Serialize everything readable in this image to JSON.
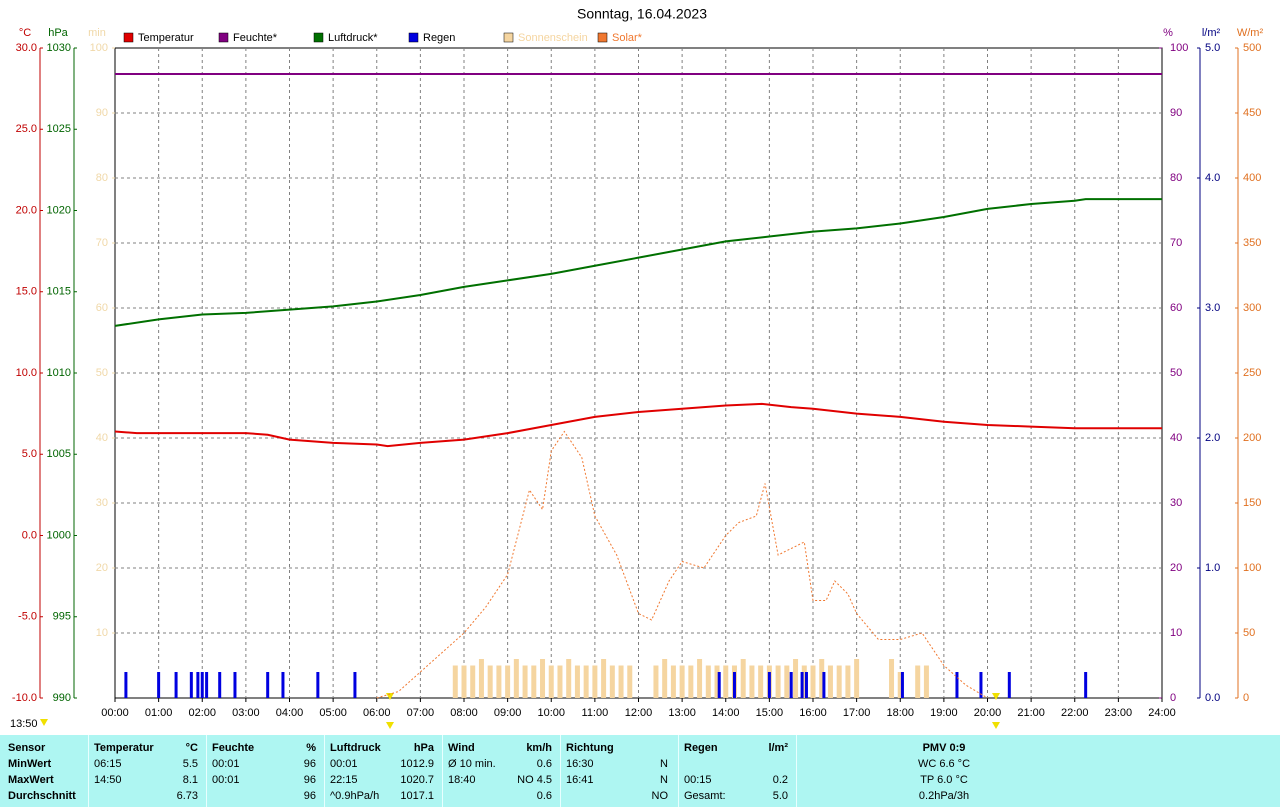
{
  "chart_data": {
    "type": "line",
    "title": "Sonntag, 16.04.2023",
    "xlim": [
      0,
      24
    ],
    "xticks": [
      {
        "value": 0,
        "label": "00:00"
      },
      {
        "value": 1,
        "label": "01:00"
      },
      {
        "value": 2,
        "label": "02:00"
      },
      {
        "value": 3,
        "label": "03:00"
      },
      {
        "value": 4,
        "label": "04:00"
      },
      {
        "value": 5,
        "label": "05:00"
      },
      {
        "value": 6,
        "label": "06:00"
      },
      {
        "value": 7,
        "label": "07:00"
      },
      {
        "value": 8,
        "label": "08:00"
      },
      {
        "value": 9,
        "label": "09:00"
      },
      {
        "value": 10,
        "label": "10:00"
      },
      {
        "value": 11,
        "label": "11:00"
      },
      {
        "value": 12,
        "label": "12:00"
      },
      {
        "value": 13,
        "label": "13:00"
      },
      {
        "value": 14,
        "label": "14:00"
      },
      {
        "value": 15,
        "label": "15:00"
      },
      {
        "value": 16,
        "label": "16:00"
      },
      {
        "value": 17,
        "label": "17:00"
      },
      {
        "value": 18,
        "label": "18:00"
      },
      {
        "value": 19,
        "label": "19:00"
      },
      {
        "value": 20,
        "label": "20:00"
      },
      {
        "value": 21,
        "label": "21:00"
      },
      {
        "value": 22,
        "label": "22:00"
      },
      {
        "value": 23,
        "label": "23:00"
      },
      {
        "value": 24,
        "label": "24:00"
      }
    ],
    "current_time": "13:50",
    "axes": [
      {
        "unit": "°C",
        "color": "#c00000",
        "lim": [
          -10,
          30
        ],
        "ticks": [
          {
            "value": -10,
            "label": "-10.0"
          },
          {
            "value": -5,
            "label": "-5.0"
          },
          {
            "value": 0,
            "label": "0.0"
          },
          {
            "value": 5,
            "label": "5.0"
          },
          {
            "value": 10,
            "label": "10.0"
          },
          {
            "value": 15,
            "label": "15.0"
          },
          {
            "value": 20,
            "label": "20.0"
          },
          {
            "value": 25,
            "label": "25.0"
          },
          {
            "value": 30,
            "label": "30.0"
          }
        ]
      },
      {
        "unit": "hPa",
        "color": "#006400",
        "lim": [
          990,
          1030
        ],
        "ticks": [
          990,
          995,
          1000,
          1005,
          1010,
          1015,
          1020,
          1025,
          1030
        ]
      },
      {
        "unit": "min",
        "color": "#f0d8a8",
        "lim": [
          0,
          100
        ],
        "ticks": [
          10,
          20,
          30,
          40,
          50,
          60,
          70,
          80,
          90,
          100
        ]
      },
      {
        "unit": "%",
        "color": "#800080",
        "lim": [
          0,
          100
        ],
        "ticks": [
          0,
          10,
          20,
          30,
          40,
          50,
          60,
          70,
          80,
          90,
          100
        ],
        "grid": true
      },
      {
        "unit": "l/m²",
        "color": "#000080",
        "lim": [
          0,
          5
        ],
        "ticks": [
          {
            "value": 0,
            "label": "0.0"
          },
          {
            "value": 1,
            "label": "1.0"
          },
          {
            "value": 2,
            "label": "2.0"
          },
          {
            "value": 3,
            "label": "3.0"
          },
          {
            "value": 4,
            "label": "4.0"
          },
          {
            "value": 5,
            "label": "5.0"
          }
        ]
      },
      {
        "unit": "W/m²",
        "color": "#e07020",
        "lim": [
          0,
          500
        ],
        "ticks": [
          0,
          50,
          100,
          150,
          200,
          250,
          300,
          350,
          400,
          450,
          500
        ]
      }
    ],
    "series": [
      {
        "name": "Temperatur",
        "color": "#e00000",
        "axis": 0,
        "kind": "line",
        "x": [
          0,
          0.5,
          1,
          2,
          3,
          3.5,
          4,
          5,
          6,
          6.25,
          7,
          8,
          9,
          10,
          11,
          12,
          13,
          14,
          14.83,
          15.5,
          16,
          17,
          18,
          19,
          20,
          21,
          22,
          23,
          24
        ],
        "values": [
          6.4,
          6.3,
          6.3,
          6.3,
          6.3,
          6.2,
          5.9,
          5.7,
          5.6,
          5.5,
          5.7,
          5.9,
          6.3,
          6.8,
          7.3,
          7.6,
          7.8,
          8.0,
          8.1,
          7.9,
          7.8,
          7.5,
          7.3,
          7.0,
          6.8,
          6.7,
          6.6,
          6.6,
          6.6
        ]
      },
      {
        "name": "Feuchte*",
        "color": "#800080",
        "axis": 3,
        "kind": "line",
        "x": [
          0,
          24
        ],
        "values": [
          96,
          96
        ]
      },
      {
        "name": "Luftdruck*",
        "color": "#007000",
        "axis": 1,
        "kind": "line",
        "x": [
          0,
          1,
          2,
          3,
          4,
          5,
          6,
          7,
          8,
          9,
          10,
          11,
          12,
          13,
          14,
          15,
          16,
          17,
          18,
          19,
          20,
          21,
          22,
          22.25,
          24
        ],
        "values": [
          1012.9,
          1013.3,
          1013.6,
          1013.7,
          1013.9,
          1014.1,
          1014.4,
          1014.8,
          1015.3,
          1015.7,
          1016.1,
          1016.6,
          1017.1,
          1017.6,
          1018.1,
          1018.4,
          1018.7,
          1018.9,
          1019.2,
          1019.6,
          1020.1,
          1020.4,
          1020.6,
          1020.7,
          1020.7
        ]
      },
      {
        "name": "Regen",
        "color": "#0000e0",
        "axis": 4,
        "kind": "bar",
        "width": 3,
        "x": [
          0.25,
          1.0,
          1.4,
          1.75,
          1.9,
          2.0,
          2.1,
          2.4,
          2.75,
          3.5,
          3.85,
          4.65,
          5.5,
          13.85,
          14.2,
          15.0,
          15.5,
          15.75,
          15.85,
          16.25,
          18.05,
          19.3,
          19.85,
          20.5,
          22.25
        ],
        "values": [
          0.2,
          0.2,
          0.2,
          0.2,
          0.2,
          0.2,
          0.2,
          0.2,
          0.2,
          0.2,
          0.2,
          0.2,
          0.2,
          0.2,
          0.2,
          0.2,
          0.2,
          0.2,
          0.2,
          0.2,
          0.2,
          0.2,
          0.2,
          0.2,
          0.2
        ]
      },
      {
        "name": "Sonnenschein",
        "color": "#f5d5a0",
        "axis": 2,
        "kind": "bar",
        "width": 5,
        "x": [
          7.8,
          8,
          8.2,
          8.4,
          8.6,
          8.8,
          9,
          9.2,
          9.4,
          9.6,
          9.8,
          10,
          10.2,
          10.4,
          10.6,
          10.8,
          11,
          11.2,
          11.4,
          11.6,
          11.8,
          12.4,
          12.6,
          12.8,
          13,
          13.2,
          13.4,
          13.6,
          13.8,
          14,
          14.2,
          14.4,
          14.6,
          14.8,
          15,
          15.2,
          15.4,
          15.6,
          15.8,
          16,
          16.2,
          16.4,
          16.6,
          16.8,
          17,
          17.8,
          18,
          18.4,
          18.6
        ],
        "values": [
          5,
          5,
          5,
          6,
          5,
          5,
          5,
          6,
          5,
          5,
          6,
          5,
          5,
          6,
          5,
          5,
          5,
          6,
          5,
          5,
          5,
          5,
          6,
          5,
          5,
          5,
          6,
          5,
          5,
          5,
          5,
          6,
          5,
          5,
          5,
          5,
          5,
          6,
          5,
          5,
          6,
          5,
          5,
          5,
          6,
          6,
          4,
          5,
          5
        ]
      },
      {
        "name": "Solar*",
        "color": "#f07830",
        "axis": 5,
        "kind": "line",
        "dashed": true,
        "x": [
          6,
          6.5,
          7,
          7.5,
          8,
          8.5,
          9,
          9.5,
          9.8,
          10,
          10.3,
          10.7,
          11,
          11.5,
          12,
          12.3,
          12.7,
          13,
          13.5,
          14,
          14.3,
          14.7,
          14.9,
          15.2,
          15.5,
          15.8,
          16,
          16.3,
          16.5,
          16.8,
          17,
          17.5,
          18,
          18.5,
          19,
          19.5,
          20
        ],
        "values": [
          0,
          5,
          20,
          35,
          50,
          70,
          95,
          160,
          145,
          190,
          205,
          185,
          140,
          110,
          65,
          60,
          90,
          105,
          100,
          125,
          135,
          140,
          165,
          110,
          115,
          120,
          75,
          75,
          90,
          80,
          65,
          45,
          45,
          50,
          25,
          10,
          0
        ]
      }
    ]
  },
  "table": {
    "header": [
      {
        "left": "Sensor"
      },
      {
        "left": "Temperatur",
        "right": "°C"
      },
      {
        "left": "Feuchte",
        "right": "%"
      },
      {
        "left": "Luftdruck",
        "right": "hPa"
      },
      {
        "left": "Wind",
        "right": "km/h"
      },
      {
        "left": "Richtung"
      },
      {
        "left": "Regen",
        "right": "l/m²"
      },
      {
        "center": "PMV 0:9"
      }
    ],
    "rows": [
      [
        {
          "left": "MinWert"
        },
        {
          "left": "06:15",
          "right": "5.5"
        },
        {
          "left": "00:01",
          "right": "96"
        },
        {
          "left": "00:01",
          "right": "1012.9"
        },
        {
          "left": "Ø 10 min.",
          "right": "0.6"
        },
        {
          "left": "16:30",
          "right": "N"
        },
        {},
        {
          "center": "WC 6.6 °C"
        }
      ],
      [
        {
          "left": "MaxWert"
        },
        {
          "left": "14:50",
          "right": "8.1"
        },
        {
          "left": "00:01",
          "right": "96"
        },
        {
          "left": "22:15",
          "right": "1020.7"
        },
        {
          "left": "18:40",
          "right": "NO 4.5"
        },
        {
          "left": "16:41",
          "right": "N"
        },
        {
          "left": "00:15",
          "right": "0.2"
        },
        {
          "center": "TP 6.0 °C"
        }
      ],
      [
        {
          "left": "Durchschnitt"
        },
        {
          "right": "6.73"
        },
        {
          "right": "96"
        },
        {
          "left": "^0.9hPa/h",
          "right": "1017.1"
        },
        {
          "right": "0.6"
        },
        {
          "right": "NO"
        },
        {
          "left": "Gesamt:",
          "right": "5.0"
        },
        {
          "center": "0.2hPa/3h"
        }
      ]
    ]
  }
}
